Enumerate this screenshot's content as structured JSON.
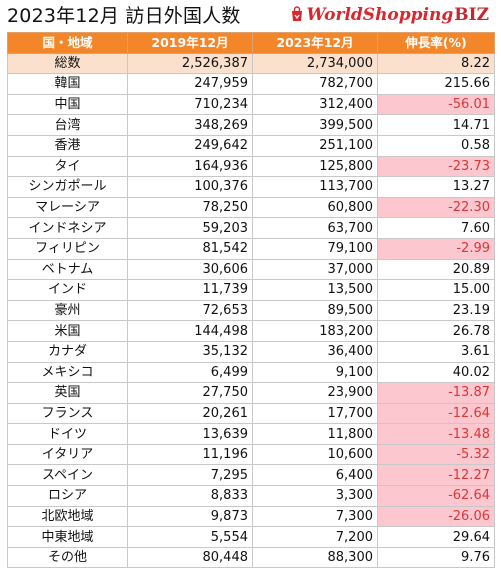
{
  "page": {
    "title": "2023年12月 訪日外国人数",
    "logo": {
      "text": "WorldShopping",
      "suffix": "BIZ",
      "brand_color": "#d9272e"
    }
  },
  "colors": {
    "header_bg": "#f4862a",
    "total_row_bg": "#fbe1cd",
    "negative_bg": "#fcc7cf",
    "negative_text": "#d93838"
  },
  "table": {
    "headers": [
      "国・地域",
      "2019年12月",
      "2023年12月",
      "伸長率(%)"
    ],
    "rows": [
      {
        "country": "総数",
        "y2019": "2,526,387",
        "y2023": "2,734,000",
        "growth": "8.22",
        "negative": false,
        "total": true
      },
      {
        "country": "韓国",
        "y2019": "247,959",
        "y2023": "782,700",
        "growth": "215.66",
        "negative": false
      },
      {
        "country": "中国",
        "y2019": "710,234",
        "y2023": "312,400",
        "growth": "-56.01",
        "negative": true
      },
      {
        "country": "台湾",
        "y2019": "348,269",
        "y2023": "399,500",
        "growth": "14.71",
        "negative": false
      },
      {
        "country": "香港",
        "y2019": "249,642",
        "y2023": "251,100",
        "growth": "0.58",
        "negative": false
      },
      {
        "country": "タイ",
        "y2019": "164,936",
        "y2023": "125,800",
        "growth": "-23.73",
        "negative": true
      },
      {
        "country": "シンガポール",
        "y2019": "100,376",
        "y2023": "113,700",
        "growth": "13.27",
        "negative": false
      },
      {
        "country": "マレーシア",
        "y2019": "78,250",
        "y2023": "60,800",
        "growth": "-22.30",
        "negative": true
      },
      {
        "country": "インドネシア",
        "y2019": "59,203",
        "y2023": "63,700",
        "growth": "7.60",
        "negative": false
      },
      {
        "country": "フィリピン",
        "y2019": "81,542",
        "y2023": "79,100",
        "growth": "-2.99",
        "negative": true
      },
      {
        "country": "ベトナム",
        "y2019": "30,606",
        "y2023": "37,000",
        "growth": "20.89",
        "negative": false
      },
      {
        "country": "インド",
        "y2019": "11,739",
        "y2023": "13,500",
        "growth": "15.00",
        "negative": false
      },
      {
        "country": "豪州",
        "y2019": "72,653",
        "y2023": "89,500",
        "growth": "23.19",
        "negative": false
      },
      {
        "country": "米国",
        "y2019": "144,498",
        "y2023": "183,200",
        "growth": "26.78",
        "negative": false
      },
      {
        "country": "カナダ",
        "y2019": "35,132",
        "y2023": "36,400",
        "growth": "3.61",
        "negative": false
      },
      {
        "country": "メキシコ",
        "y2019": "6,499",
        "y2023": "9,100",
        "growth": "40.02",
        "negative": false
      },
      {
        "country": "英国",
        "y2019": "27,750",
        "y2023": "23,900",
        "growth": "-13.87",
        "negative": true
      },
      {
        "country": "フランス",
        "y2019": "20,261",
        "y2023": "17,700",
        "growth": "-12.64",
        "negative": true
      },
      {
        "country": "ドイツ",
        "y2019": "13,639",
        "y2023": "11,800",
        "growth": "-13.48",
        "negative": true
      },
      {
        "country": "イタリア",
        "y2019": "11,196",
        "y2023": "10,600",
        "growth": "-5.32",
        "negative": true
      },
      {
        "country": "スペイン",
        "y2019": "7,295",
        "y2023": "6,400",
        "growth": "-12.27",
        "negative": true
      },
      {
        "country": "ロシア",
        "y2019": "8,833",
        "y2023": "3,300",
        "growth": "-62.64",
        "negative": true
      },
      {
        "country": "北欧地域",
        "y2019": "9,873",
        "y2023": "7,300",
        "growth": "-26.06",
        "negative": true
      },
      {
        "country": "中東地域",
        "y2019": "5,554",
        "y2023": "7,200",
        "growth": "29.64",
        "negative": false
      },
      {
        "country": "その他",
        "y2019": "80,448",
        "y2023": "88,300",
        "growth": "9.76",
        "negative": false
      }
    ]
  }
}
